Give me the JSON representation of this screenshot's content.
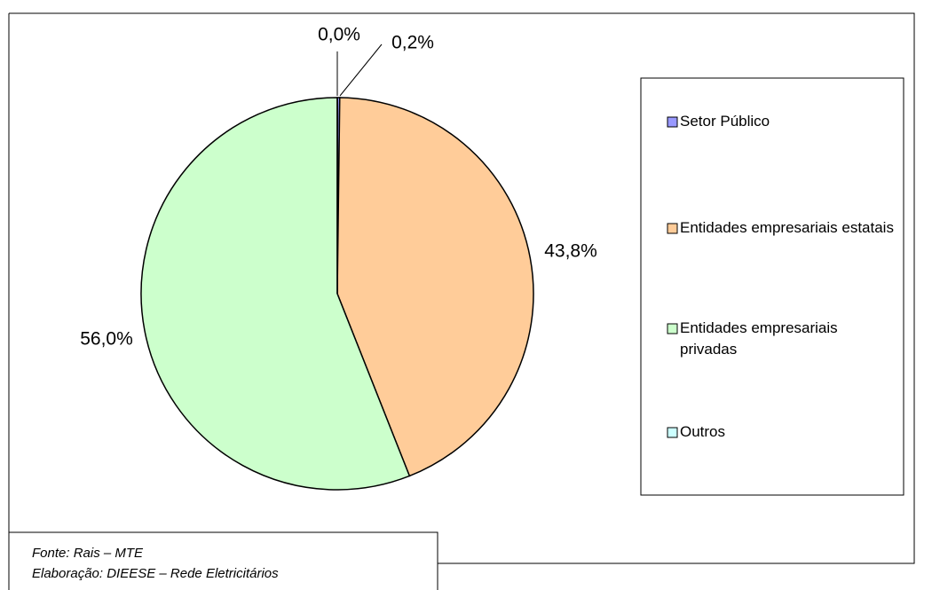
{
  "chart_data": {
    "type": "pie",
    "categories": [
      "Setor Público",
      "Entidades empresariais estatais",
      "Entidades empresariais privadas",
      "Outros"
    ],
    "values": [
      0.2,
      43.8,
      56.0,
      0.0
    ],
    "value_labels": [
      "0,2%",
      "43,8%",
      "56,0%",
      "0,0%"
    ],
    "colors": [
      "#9999ff",
      "#ffcc99",
      "#ccffcc",
      "#ccffff"
    ],
    "legend": "right",
    "source": [
      "Fonte: Rais – MTE",
      "Elaboração: DIEESE – Rede Eletricitários"
    ]
  }
}
